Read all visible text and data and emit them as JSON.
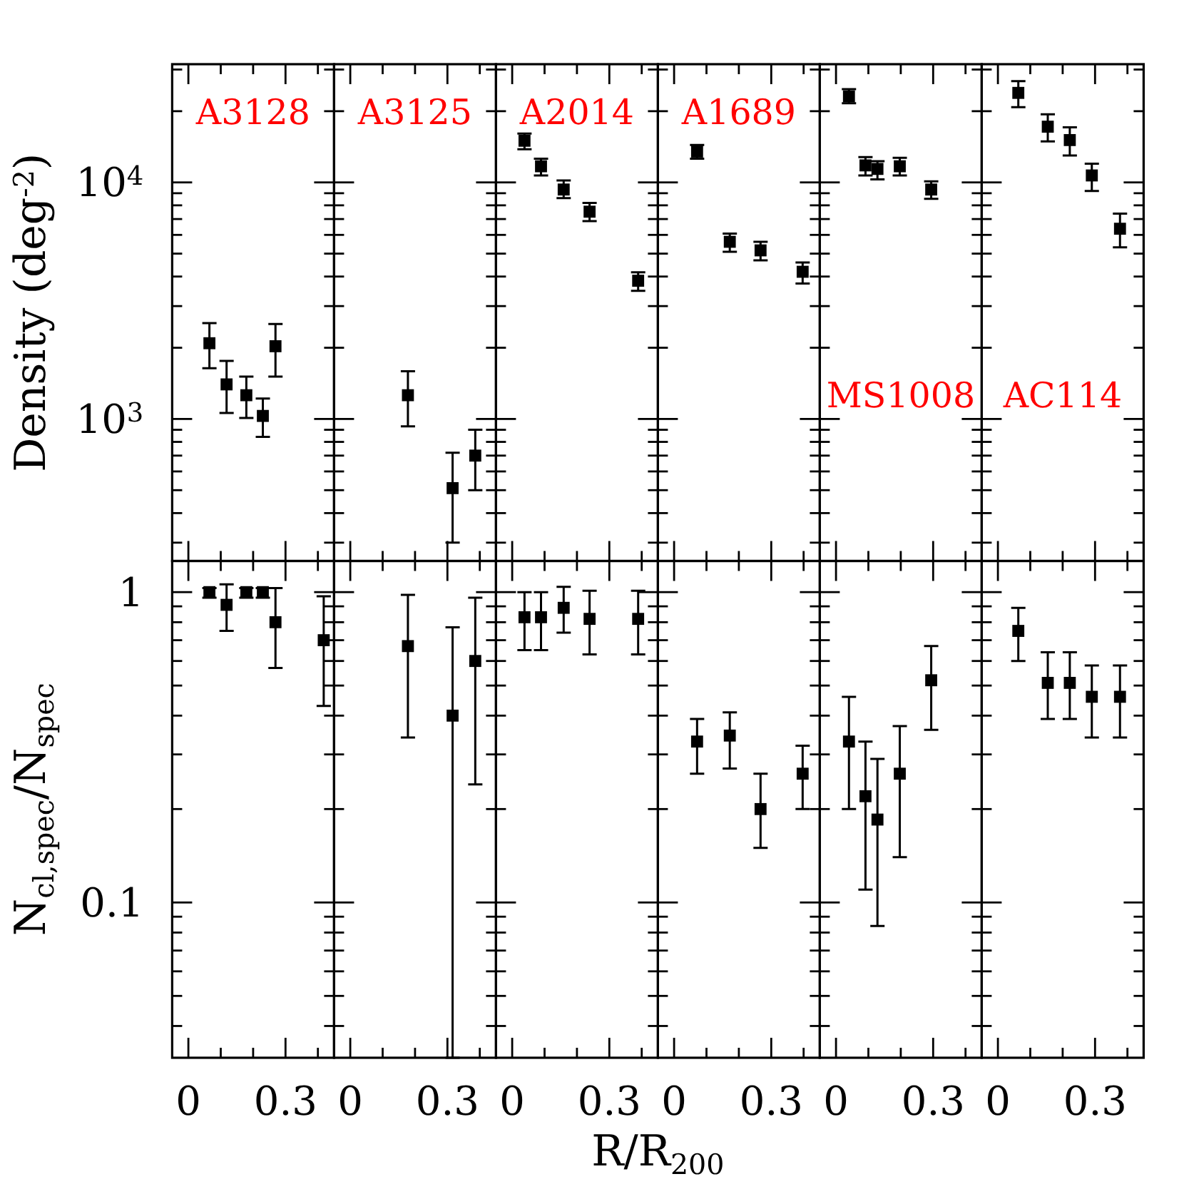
{
  "chart_data": [
    {
      "type": "scatter",
      "title": "A3128",
      "ylabel": "Density (deg$^{-2}$)",
      "log": true,
      "marker": "square",
      "color": "#000000",
      "tick_labels": "y",
      "x": [
        0.065,
        0.118,
        0.179,
        0.23,
        0.269
      ],
      "values": [
        2090,
        1400,
        1260,
        1030,
        2030
      ],
      "errors": [
        [
          1640,
          2540
        ],
        [
          1060,
          1760
        ],
        [
          1010,
          1510
        ],
        [
          840,
          1220
        ],
        [
          1510,
          2520
        ]
      ],
      "xlim": [
        -0.05,
        0.45
      ],
      "ylim": [
        251,
        31600
      ],
      "yticks": [
        {
          "value": 300,
          "label": null
        },
        {
          "value": 400,
          "label": null
        },
        {
          "value": 500,
          "label": null
        },
        {
          "value": 600,
          "label": null
        },
        {
          "value": 700,
          "label": null
        },
        {
          "value": 800,
          "label": null
        },
        {
          "value": 900,
          "label": null
        },
        {
          "value": 1000,
          "label": "10$^{3}$"
        },
        {
          "value": 2000,
          "label": null
        },
        {
          "value": 3000,
          "label": null
        },
        {
          "value": 4000,
          "label": null
        },
        {
          "value": 5000,
          "label": null
        },
        {
          "value": 6000,
          "label": null
        },
        {
          "value": 7000,
          "label": null
        },
        {
          "value": 8000,
          "label": null
        },
        {
          "value": 9000,
          "label": null
        },
        {
          "value": 10000,
          "label": "10$^{4}$"
        },
        {
          "value": 20000,
          "label": null
        },
        {
          "value": 30000,
          "label": null
        }
      ]
    },
    {
      "type": "scatter",
      "title": "A3125",
      "log": true,
      "marker": "square",
      "color": "#000000",
      "tick_labels": false,
      "x": [
        0.178,
        0.316,
        0.386
      ],
      "values": [
        1260,
        510,
        700
      ],
      "errors": [
        [
          930,
          1590
        ],
        [
          300,
          720
        ],
        [
          500,
          900
        ]
      ],
      "xlim": [
        -0.05,
        0.45
      ],
      "ylim": [
        251,
        31600
      ]
    },
    {
      "type": "scatter",
      "title": "A2014",
      "log": true,
      "marker": "square",
      "color": "#000000",
      "tick_labels": false,
      "x": [
        0.038,
        0.089,
        0.159,
        0.239,
        0.389
      ],
      "values": [
        15000,
        11700,
        9330,
        7520,
        3840
      ],
      "errors": [
        [
          13800,
          16100
        ],
        [
          10700,
          12600
        ],
        [
          8580,
          10200
        ],
        [
          6860,
          8190
        ],
        [
          3480,
          4170
        ]
      ],
      "xlim": [
        -0.05,
        0.45
      ],
      "ylim": [
        251,
        31600
      ]
    },
    {
      "type": "scatter",
      "title": "A1689",
      "log": true,
      "marker": "square",
      "color": "#000000",
      "tick_labels": false,
      "x": [
        0.071,
        0.172,
        0.267,
        0.397
      ],
      "values": [
        13500,
        5610,
        5160,
        4190
      ],
      "errors": [
        [
          12600,
          14400
        ],
        [
          5090,
          6080
        ],
        [
          4680,
          5610
        ],
        [
          3740,
          4590
        ]
      ],
      "xlim": [
        -0.05,
        0.45
      ],
      "ylim": [
        251,
        31600
      ]
    },
    {
      "type": "scatter",
      "title": "MS1008",
      "log": true,
      "marker": "square",
      "color": "#000000",
      "tick_labels": false,
      "x": [
        0.04,
        0.091,
        0.128,
        0.197,
        0.294
      ],
      "values": [
        23100,
        11800,
        11400,
        11700,
        9330
      ],
      "errors": [
        [
          21600,
          24800
        ],
        [
          10700,
          12800
        ],
        [
          10300,
          12300
        ],
        [
          10700,
          12700
        ],
        [
          8530,
          10100
        ]
      ],
      "xlim": [
        -0.05,
        0.45
      ],
      "ylim": [
        251,
        31600
      ]
    },
    {
      "type": "scatter",
      "title": "AC114",
      "log": true,
      "marker": "square",
      "color": "#000000",
      "tick_labels": false,
      "x": [
        0.063,
        0.154,
        0.222,
        0.29,
        0.377
      ],
      "values": [
        23900,
        17200,
        15100,
        10700,
        6370
      ],
      "errors": [
        [
          20800,
          26800
        ],
        [
          14900,
          19400
        ],
        [
          13000,
          17100
        ],
        [
          9200,
          12000
        ],
        [
          5320,
          7380
        ]
      ],
      "xlim": [
        -0.05,
        0.45
      ],
      "ylim": [
        251,
        31600
      ]
    },
    {
      "type": "scatter",
      "ylabel": "N$_{cl,spec}$/N$_{spec}$",
      "log": true,
      "marker": "square",
      "color": "#000000",
      "x": [
        0.065,
        0.118,
        0.179,
        0.23,
        0.269,
        0.418
      ],
      "values": [
        1.0,
        0.91,
        1.0,
        1.0,
        0.8,
        0.7
      ],
      "errors": [
        [
          0.96,
          1.03
        ],
        [
          0.75,
          1.06
        ],
        [
          0.96,
          1.03
        ],
        [
          0.96,
          1.03
        ],
        [
          0.57,
          1.03
        ],
        [
          0.43,
          0.97
        ]
      ],
      "xlim": [
        -0.05,
        0.45
      ],
      "xticks": [
        {
          "value": 0,
          "label": "0"
        },
        {
          "value": 0.1,
          "label": null
        },
        {
          "value": 0.2,
          "label": null
        },
        {
          "value": 0.3,
          "label": "0.3"
        },
        {
          "value": 0.4,
          "label": null
        }
      ],
      "ylim": [
        0.0316,
        1.26
      ],
      "yticks": [
        {
          "value": 0.04,
          "label": null
        },
        {
          "value": 0.05,
          "label": null
        },
        {
          "value": 0.06,
          "label": null
        },
        {
          "value": 0.07,
          "label": null
        },
        {
          "value": 0.08,
          "label": null
        },
        {
          "value": 0.09,
          "label": null
        },
        {
          "value": 0.1,
          "label": "0.1"
        },
        {
          "value": 0.2,
          "label": null
        },
        {
          "value": 0.3,
          "label": null
        },
        {
          "value": 0.4,
          "label": null
        },
        {
          "value": 0.5,
          "label": null
        },
        {
          "value": 0.6,
          "label": null
        },
        {
          "value": 0.7,
          "label": null
        },
        {
          "value": 0.8,
          "label": null
        },
        {
          "value": 0.9,
          "label": null
        },
        {
          "value": 1,
          "label": "1"
        }
      ]
    },
    {
      "type": "scatter",
      "log": true,
      "marker": "square",
      "color": "#000000",
      "tick_labels": "x",
      "x": [
        0.178,
        0.316,
        0.386
      ],
      "values": [
        0.67,
        0.4,
        0.6
      ],
      "errors": [
        [
          0.34,
          0.98
        ],
        [
          0.0316,
          0.77
        ],
        [
          0.24,
          0.96
        ]
      ],
      "xlim": [
        -0.05,
        0.45
      ],
      "xticks": [
        {
          "value": 0,
          "label": "0"
        },
        {
          "value": 0.1,
          "label": null
        },
        {
          "value": 0.2,
          "label": null
        },
        {
          "value": 0.3,
          "label": "0.3"
        },
        {
          "value": 0.4,
          "label": null
        }
      ],
      "ylim": [
        0.0316,
        1.26
      ]
    },
    {
      "type": "scatter",
      "xlabel": "R/R$_{200}$",
      "log": true,
      "marker": "square",
      "color": "#000000",
      "tick_labels": "x",
      "x": [
        0.038,
        0.089,
        0.159,
        0.239,
        0.389
      ],
      "values": [
        0.83,
        0.83,
        0.89,
        0.82,
        0.82
      ],
      "errors": [
        [
          0.65,
          1.0
        ],
        [
          0.65,
          1.0
        ],
        [
          0.74,
          1.04
        ],
        [
          0.63,
          1.01
        ],
        [
          0.63,
          1.01
        ]
      ],
      "xlim": [
        -0.05,
        0.45
      ],
      "xticks": [
        {
          "value": 0,
          "label": "0"
        },
        {
          "value": 0.1,
          "label": null
        },
        {
          "value": 0.2,
          "label": null
        },
        {
          "value": 0.3,
          "label": "0.3"
        },
        {
          "value": 0.4,
          "label": null
        }
      ],
      "ylim": [
        0.0316,
        1.26
      ]
    },
    {
      "type": "scatter",
      "log": true,
      "marker": "square",
      "color": "#000000",
      "tick_labels": "x",
      "x": [
        0.071,
        0.172,
        0.267,
        0.397
      ],
      "values": [
        0.33,
        0.345,
        0.2,
        0.26
      ],
      "errors": [
        [
          0.26,
          0.39
        ],
        [
          0.27,
          0.41
        ],
        [
          0.15,
          0.26
        ],
        [
          0.2,
          0.32
        ]
      ],
      "xlim": [
        -0.05,
        0.45
      ],
      "xticks": [
        {
          "value": 0,
          "label": "0"
        },
        {
          "value": 0.1,
          "label": null
        },
        {
          "value": 0.2,
          "label": null
        },
        {
          "value": 0.3,
          "label": "0.3"
        },
        {
          "value": 0.4,
          "label": null
        }
      ],
      "ylim": [
        0.0316,
        1.26
      ]
    },
    {
      "type": "scatter",
      "log": true,
      "marker": "square",
      "color": "#000000",
      "tick_labels": "x",
      "x": [
        0.04,
        0.091,
        0.128,
        0.197,
        0.294
      ],
      "values": [
        0.33,
        0.22,
        0.185,
        0.26,
        0.52
      ],
      "errors": [
        [
          0.2,
          0.46
        ],
        [
          0.11,
          0.33
        ],
        [
          0.084,
          0.29
        ],
        [
          0.14,
          0.37
        ],
        [
          0.36,
          0.67
        ]
      ],
      "xlim": [
        -0.05,
        0.45
      ],
      "xticks": [
        {
          "value": 0,
          "label": "0"
        },
        {
          "value": 0.1,
          "label": null
        },
        {
          "value": 0.2,
          "label": null
        },
        {
          "value": 0.3,
          "label": "0.3"
        },
        {
          "value": 0.4,
          "label": null
        }
      ],
      "ylim": [
        0.0316,
        1.26
      ]
    },
    {
      "type": "scatter",
      "log": true,
      "marker": "square",
      "color": "#000000",
      "tick_labels": "x",
      "x": [
        0.063,
        0.154,
        0.222,
        0.29,
        0.377
      ],
      "values": [
        0.75,
        0.51,
        0.51,
        0.46,
        0.46
      ],
      "errors": [
        [
          0.6,
          0.89
        ],
        [
          0.39,
          0.64
        ],
        [
          0.39,
          0.64
        ],
        [
          0.34,
          0.58
        ],
        [
          0.34,
          0.58
        ]
      ],
      "xlim": [
        -0.05,
        0.45
      ],
      "xticks": [
        {
          "value": 0,
          "label": "0"
        },
        {
          "value": 0.1,
          "label": null
        },
        {
          "value": 0.2,
          "label": null
        },
        {
          "value": 0.3,
          "label": "0.3"
        },
        {
          "value": 0.4,
          "label": null
        }
      ],
      "ylim": [
        0.0316,
        1.26
      ]
    }
  ]
}
